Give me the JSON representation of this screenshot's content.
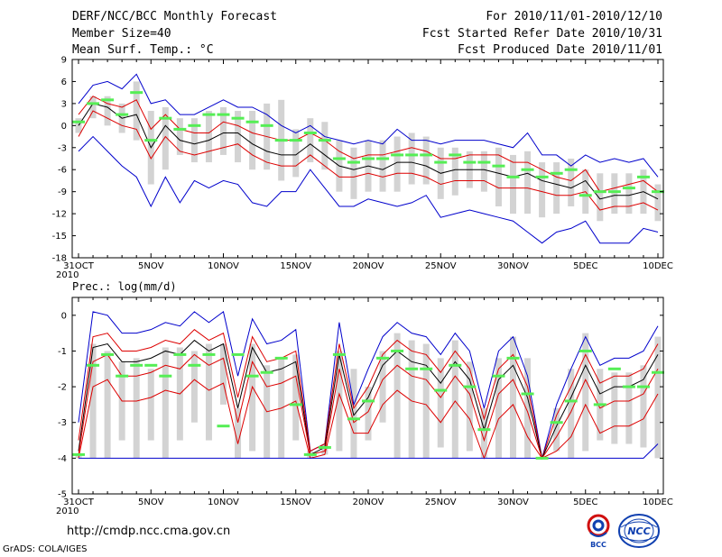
{
  "header": {
    "title": "DERF/NCC/BCC Monthly Forecast",
    "member_size": "Member Size=40",
    "variable1": "Mean Surf. Temp.: °C",
    "period": "For 2010/11/01-2010/12/10",
    "started": "Fcst Started Refer Date 2010/10/31",
    "produced": "Fcst Produced Date 2010/11/01"
  },
  "footer": {
    "url": "http://cmdp.ncc.cma.gov.cn",
    "grads": "GrADS: COLA/IGES",
    "logo_bcc": "BCC",
    "logo_ncc": "NCC"
  },
  "colors": {
    "ensemble_box": "#d3d3d3",
    "median": "#55ee55",
    "mean": "#000000",
    "inner_band": "#dd0000",
    "outer_band": "#0000cc"
  },
  "chart_data": [
    {
      "type": "line",
      "title": "Mean Surf. Temp.: °C",
      "x_ticks": [
        "31OCT",
        "5NOV",
        "10NOV",
        "15NOV",
        "20NOV",
        "25NOV",
        "30NOV",
        "5DEC",
        "10DEC"
      ],
      "x_tick_days": [
        0,
        5,
        10,
        15,
        20,
        25,
        30,
        35,
        40
      ],
      "x_year_label": "2010",
      "ylim": [
        -18,
        9
      ],
      "yticks": [
        9,
        6,
        3,
        0,
        -3,
        -6,
        -9,
        -12,
        -15,
        -18
      ],
      "days": [
        0,
        1,
        2,
        3,
        4,
        5,
        6,
        7,
        8,
        9,
        10,
        11,
        12,
        13,
        14,
        15,
        16,
        17,
        18,
        19,
        20,
        21,
        22,
        23,
        24,
        25,
        26,
        27,
        28,
        29,
        30,
        31,
        32,
        33,
        34,
        35,
        36,
        37,
        38,
        39,
        40
      ],
      "series": [
        {
          "name": "upper",
          "values": [
            3,
            5.5,
            6,
            5,
            7,
            3,
            3.5,
            1.5,
            1.5,
            2.5,
            3.5,
            2.5,
            2.5,
            1.5,
            0,
            -1,
            0,
            -1.5,
            -2,
            -2.5,
            -2,
            -2.5,
            -0.5,
            -2,
            -2,
            -2.5,
            -2,
            -2,
            -2,
            -2.5,
            -3,
            -1,
            -4,
            -4,
            -5.5,
            -4,
            -5,
            -4.5,
            -5,
            -4.5,
            -7
          ]
        },
        {
          "name": "upper_std",
          "values": [
            1.5,
            4,
            3,
            2.5,
            3.5,
            -0.5,
            1.5,
            -0.5,
            -1,
            -1,
            0.5,
            0,
            -1,
            -1.5,
            -2,
            -2,
            -1,
            -2,
            -3.5,
            -4.5,
            -4,
            -4,
            -3.5,
            -3,
            -3.5,
            -4.5,
            -4.5,
            -4,
            -4,
            -4,
            -5,
            -5,
            -6,
            -7,
            -7.5,
            -6,
            -9,
            -8.5,
            -8,
            -7.5,
            -9
          ]
        },
        {
          "name": "mean",
          "values": [
            0,
            3,
            2.5,
            1,
            1.5,
            -3,
            0,
            -2,
            -2.5,
            -2,
            -1,
            -1,
            -2.5,
            -3.5,
            -4,
            -4,
            -2.5,
            -4,
            -5.5,
            -6,
            -5.5,
            -6,
            -5,
            -5,
            -5.5,
            -6.5,
            -6,
            -6,
            -6,
            -6.5,
            -7,
            -6.5,
            -7.5,
            -8,
            -8.5,
            -7.5,
            -10,
            -9.5,
            -9.5,
            -9,
            -10
          ]
        },
        {
          "name": "lower_std",
          "values": [
            -1.5,
            2,
            1,
            0,
            -0.5,
            -4.5,
            -1.5,
            -3.5,
            -4,
            -3.5,
            -3,
            -2.5,
            -4,
            -5,
            -5.5,
            -5.5,
            -4,
            -5.5,
            -7,
            -7,
            -6.5,
            -7,
            -6.5,
            -6.5,
            -7,
            -8,
            -7.5,
            -7.5,
            -7.5,
            -8.5,
            -8.5,
            -8.5,
            -9,
            -9.5,
            -9.5,
            -9,
            -11.5,
            -11,
            -11,
            -10.5,
            -11.5
          ]
        },
        {
          "name": "lower",
          "values": [
            -3.5,
            -1.5,
            -3.5,
            -5.5,
            -7,
            -11,
            -7,
            -10.5,
            -7.5,
            -8.5,
            -7.5,
            -8,
            -10.5,
            -11,
            -9,
            -9,
            -6,
            -8.5,
            -11,
            -11,
            -10,
            -10.5,
            -11,
            -10.5,
            -9.5,
            -12.5,
            -12,
            -11.5,
            -12,
            -12.5,
            -13,
            -14.5,
            -16,
            -14.5,
            -14,
            -13,
            -16,
            -16,
            -16,
            -14,
            -14.5
          ]
        },
        {
          "name": "median",
          "values": [
            0.5,
            3,
            3.5,
            1.5,
            4.5,
            -2,
            1,
            -0.5,
            0,
            1.5,
            1.5,
            1,
            0.5,
            0,
            -2,
            -2,
            -1,
            -2,
            -4.5,
            -5,
            -4.5,
            -4.5,
            -4,
            -4,
            -4,
            -5,
            -4,
            -5,
            -5,
            -5.5,
            -7,
            -6,
            -7,
            -6.5,
            -6,
            -9.5,
            -9,
            -9,
            -8.5,
            -7,
            -9
          ]
        },
        {
          "name": "box_top",
          "values": [
            1,
            4,
            4,
            3,
            6,
            2,
            2.5,
            1,
            1,
            2,
            2.5,
            2,
            2,
            3,
            3.5,
            -0.5,
            1,
            0.5,
            -2,
            -3,
            -2,
            -2,
            -1.5,
            -1,
            -1.5,
            -3,
            -3,
            -3.5,
            -3.5,
            -3,
            -4,
            -3.5,
            -5,
            -5,
            -4.5,
            -6,
            -6.5,
            -6.5,
            -6.5,
            -6,
            -8
          ]
        },
        {
          "name": "box_bottom",
          "values": [
            -1,
            1,
            0,
            -1,
            -2,
            -8,
            -6,
            -4,
            -5,
            -5,
            -4,
            -5,
            -6,
            -6,
            -7.5,
            -7,
            -5,
            -6,
            -9,
            -10,
            -9,
            -9,
            -9,
            -8,
            -8,
            -10,
            -9.5,
            -8.5,
            -9,
            -11,
            -12,
            -12,
            -12.5,
            -12,
            -11,
            -12,
            -13,
            -12,
            -12,
            -12,
            -13
          ]
        }
      ]
    },
    {
      "type": "line",
      "title": "Prec.: log(mm/d)",
      "x_ticks": [
        "31OCT",
        "5NOV",
        "10NOV",
        "15NOV",
        "20NOV",
        "25NOV",
        "30NOV",
        "5DEC",
        "10DEC"
      ],
      "x_tick_days": [
        0,
        5,
        10,
        15,
        20,
        25,
        30,
        35,
        40
      ],
      "x_year_label": "2010",
      "ylim": [
        -5,
        0.5
      ],
      "yticks": [
        0,
        -1,
        -2,
        -3,
        -4,
        -5
      ],
      "days": [
        0,
        1,
        2,
        3,
        4,
        5,
        6,
        7,
        8,
        9,
        10,
        11,
        12,
        13,
        14,
        15,
        16,
        17,
        18,
        19,
        20,
        21,
        22,
        23,
        24,
        25,
        26,
        27,
        28,
        29,
        30,
        31,
        32,
        33,
        34,
        35,
        36,
        37,
        38,
        39,
        40
      ],
      "series": [
        {
          "name": "upper",
          "values": [
            -3,
            0.1,
            0,
            -0.5,
            -0.5,
            -0.4,
            -0.2,
            -0.3,
            0.1,
            -0.2,
            0.1,
            -1.7,
            -0.1,
            -0.8,
            -0.7,
            -0.4,
            -3.8,
            -3.6,
            -0.2,
            -2.5,
            -1.5,
            -0.6,
            -0.2,
            -0.5,
            -0.6,
            -1.1,
            -0.5,
            -1,
            -2.6,
            -1,
            -0.6,
            -1.7,
            -4,
            -2.5,
            -1.5,
            -0.6,
            -1.4,
            -1.2,
            -1.2,
            -1,
            -0.3
          ]
        },
        {
          "name": "upper_std",
          "values": [
            -3.5,
            -0.6,
            -0.5,
            -1,
            -1,
            -0.9,
            -0.7,
            -0.8,
            -0.4,
            -0.7,
            -0.5,
            -2.3,
            -0.6,
            -1.3,
            -1.2,
            -1,
            -3.8,
            -3.6,
            -0.8,
            -2.6,
            -2,
            -1.1,
            -0.7,
            -1,
            -1.1,
            -1.6,
            -1,
            -1.5,
            -2.9,
            -1.5,
            -1.1,
            -2,
            -4,
            -2.8,
            -2,
            -1.1,
            -1.9,
            -1.7,
            -1.7,
            -1.5,
            -0.8
          ]
        },
        {
          "name": "mean",
          "values": [
            -3.8,
            -0.9,
            -0.8,
            -1.3,
            -1.3,
            -1.2,
            -1,
            -1.1,
            -0.7,
            -1,
            -0.8,
            -2.6,
            -0.9,
            -1.6,
            -1.5,
            -1.3,
            -3.9,
            -3.7,
            -1.1,
            -2.8,
            -2.3,
            -1.4,
            -1,
            -1.3,
            -1.4,
            -1.9,
            -1.3,
            -1.8,
            -3.2,
            -1.8,
            -1.4,
            -2.3,
            -4,
            -3.1,
            -2.3,
            -1.4,
            -2.2,
            -2,
            -2,
            -1.8,
            -1.1
          ]
        },
        {
          "name": "lower_std",
          "values": [
            -3.9,
            -1.3,
            -1.1,
            -1.7,
            -1.7,
            -1.6,
            -1.4,
            -1.5,
            -1.1,
            -1.4,
            -1.2,
            -3,
            -1.3,
            -2,
            -1.9,
            -1.7,
            -3.9,
            -3.8,
            -1.5,
            -3,
            -2.7,
            -1.8,
            -1.4,
            -1.7,
            -1.8,
            -2.3,
            -1.7,
            -2.2,
            -3.5,
            -2.2,
            -1.8,
            -2.7,
            -4,
            -3.4,
            -2.7,
            -1.8,
            -2.6,
            -2.4,
            -2.4,
            -2.2,
            -1.5
          ]
        },
        {
          "name": "lower_std2",
          "values": [
            -4,
            -2,
            -1.8,
            -2.4,
            -2.4,
            -2.3,
            -2.1,
            -2.2,
            -1.8,
            -2.1,
            -1.9,
            -3.6,
            -2,
            -2.7,
            -2.6,
            -2.4,
            -4,
            -3.9,
            -2.2,
            -3.3,
            -3.3,
            -2.5,
            -2.1,
            -2.4,
            -2.5,
            -3,
            -2.4,
            -2.9,
            -4,
            -2.9,
            -2.5,
            -3.4,
            -4,
            -3.8,
            -3.4,
            -2.5,
            -3.3,
            -3.1,
            -3.1,
            -2.9,
            -2.2
          ]
        },
        {
          "name": "lower",
          "values": [
            -4,
            -4,
            -4,
            -4,
            -4,
            -4,
            -4,
            -4,
            -4,
            -4,
            -4,
            -4,
            -4,
            -4,
            -4,
            -4,
            -4,
            -4,
            -4,
            -4,
            -4,
            -4,
            -4,
            -4,
            -4,
            -4,
            -4,
            -4,
            -4,
            -4,
            -4,
            -4,
            -4,
            -4,
            -4,
            -4,
            -4,
            -4,
            -4,
            -4,
            -3.6
          ]
        },
        {
          "name": "median",
          "values": [
            -3.9,
            -1.4,
            -1.1,
            -1.7,
            -1.4,
            -1.4,
            -1.7,
            -1.1,
            -1.4,
            -1.1,
            -3.1,
            -1.1,
            -1.7,
            -1.6,
            -1.2,
            -2.5,
            -3.9,
            -3.7,
            -1.1,
            -2.9,
            -2.4,
            -1.2,
            -1,
            -1.5,
            -1.5,
            -2.1,
            -1.4,
            -2,
            -3.2,
            -1.7,
            -1.2,
            -2.2,
            -4,
            -3,
            -2.4,
            -1,
            -2.5,
            -1.5,
            -2,
            -2,
            -1.6
          ]
        },
        {
          "name": "box_top",
          "values": [
            -3.9,
            -0.8,
            -1,
            -1.3,
            -1.2,
            -1.5,
            -0.9,
            -0.9,
            -1,
            -0.8,
            -0.8,
            -2.6,
            -0.8,
            -1.4,
            -1.2,
            -1.1,
            -3.8,
            -3.6,
            -1,
            -1.5,
            -2,
            -1,
            -0.5,
            -0.7,
            -0.8,
            -1.2,
            -0.7,
            -1.3,
            -2.6,
            -1.2,
            -0.6,
            -1.2,
            -4,
            -2.6,
            -1.5,
            -0.5,
            -1.5,
            -1.6,
            -1.6,
            -1.4,
            -0.6
          ]
        },
        {
          "name": "box_bottom",
          "values": [
            -4,
            -4,
            -4,
            -3.5,
            -4,
            -3.5,
            -4,
            -3.5,
            -3,
            -3.5,
            -2.5,
            -4,
            -3.8,
            -4,
            -4,
            -3.5,
            -4,
            -3.9,
            -3.8,
            -4,
            -3.5,
            -3,
            -4,
            -4,
            -4,
            -3.7,
            -4,
            -3.8,
            -4,
            -4,
            -4,
            -4,
            -4,
            -3.8,
            -4,
            -3.8,
            -3.5,
            -3.6,
            -3.6,
            -3.7,
            -4
          ]
        }
      ]
    }
  ]
}
